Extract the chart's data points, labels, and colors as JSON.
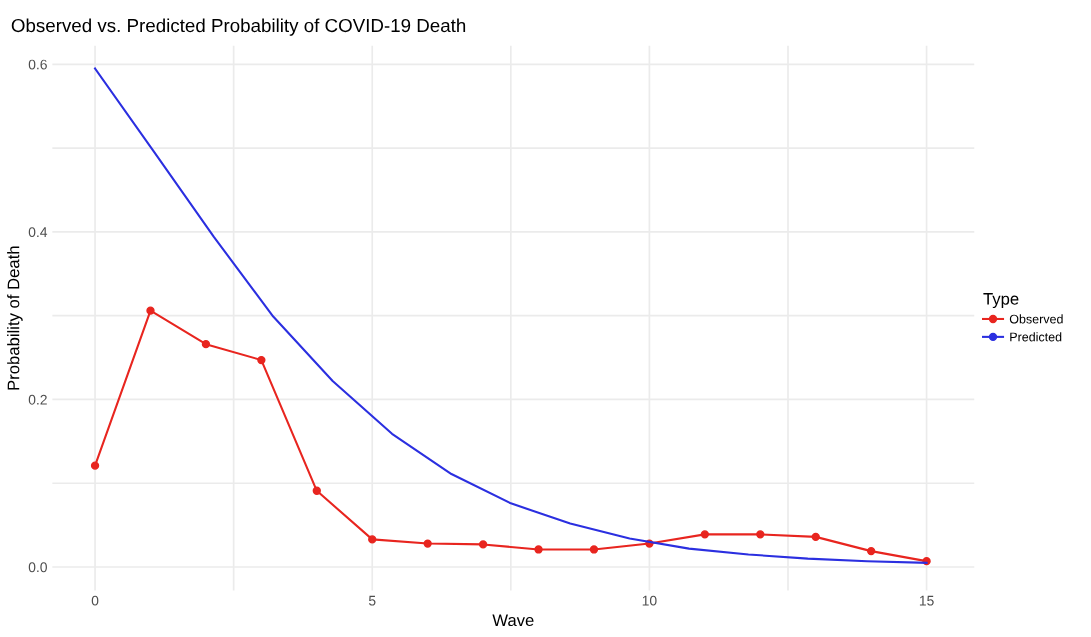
{
  "chart_data": {
    "type": "line",
    "title": "Observed vs. Predicted Probability of COVID-19 Death",
    "xlabel": "Wave",
    "ylabel": "Probability of Death",
    "legend_title": "Type",
    "legend": "right",
    "grid": true,
    "line_style": "solid",
    "xlim": [
      -0.77,
      15.86
    ],
    "ylim": [
      -0.028,
      0.622
    ],
    "xticks": [
      0,
      {
        "value": 2.5,
        "label": null
      },
      5,
      {
        "value": 7.5,
        "label": null
      },
      10,
      {
        "value": 12.5,
        "label": null
      },
      15
    ],
    "yticks": [
      {
        "value": 0,
        "label": "0.0"
      },
      {
        "value": 0.1,
        "label": null
      },
      {
        "value": 0.2,
        "label": "0.2"
      },
      {
        "value": 0.3,
        "label": null
      },
      {
        "value": 0.4,
        "label": "0.4"
      },
      {
        "value": 0.5,
        "label": null
      },
      {
        "value": 0.6,
        "label": "0.6"
      }
    ],
    "series": [
      {
        "name": "Observed",
        "color": "#e8251f",
        "marker": "circle",
        "x": [
          0,
          1,
          2,
          3,
          4,
          5,
          6,
          7,
          8,
          9,
          10,
          11,
          12,
          13,
          14,
          15
        ],
        "values": [
          0.121,
          0.306,
          0.266,
          0.247,
          0.091,
          0.033,
          0.028,
          0.027,
          0.021,
          0.021,
          0.028,
          0.039,
          0.039,
          0.036,
          0.019,
          0.007
        ]
      },
      {
        "name": "Predicted",
        "color": "#2b2fe0",
        "marker": "none",
        "x": [
          0,
          1.071,
          2.143,
          3.214,
          4.286,
          5.357,
          6.429,
          7.5,
          8.571,
          9.643,
          10.714,
          11.786,
          12.857,
          13.929,
          15
        ],
        "values": [
          0.595,
          0.495,
          0.394,
          0.299,
          0.222,
          0.159,
          0.111,
          0.076,
          0.052,
          0.034,
          0.022,
          0.015,
          0.01,
          0.007,
          0.005
        ]
      }
    ]
  }
}
